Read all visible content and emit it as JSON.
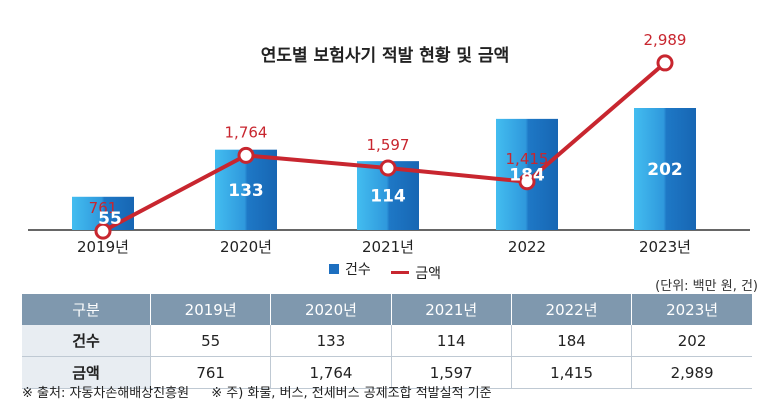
{
  "chart_data": {
    "type": "bar",
    "title": "연도별 보험사기 적발 현황 및 금액",
    "categories": [
      "2019년",
      "2020년",
      "2021년",
      "2022",
      "2023년"
    ],
    "series": [
      {
        "name": "건수",
        "kind": "bar",
        "values": [
          55,
          133,
          114,
          184,
          202
        ]
      },
      {
        "name": "금액",
        "kind": "line",
        "values": [
          761,
          1764,
          1597,
          1415,
          2989
        ]
      }
    ],
    "bar_labels": [
      "55",
      "133",
      "114",
      "184",
      "202"
    ],
    "line_labels": [
      "761",
      "1,764",
      "1,597",
      "1,415",
      "2,989"
    ],
    "colors": {
      "bar": "#1d6fc0",
      "bar_light": "#3fb2e6",
      "line": "#c8262f"
    },
    "legend_position": "bottom",
    "grid": false
  },
  "unit_note": "(단위: 백만 원, 건)",
  "table": {
    "headers": [
      "구분",
      "2019년",
      "2020년",
      "2021년",
      "2022년",
      "2023년"
    ],
    "rows": [
      [
        "건수",
        "55",
        "133",
        "114",
        "184",
        "202"
      ],
      [
        "금액",
        "761",
        "1,764",
        "1,597",
        "1,415",
        "2,989"
      ]
    ]
  },
  "footnotes": [
    "※ 출처: 자동차손해배상진흥원",
    "※ 주) 화물, 버스, 전세버스 공제조합 적발실적 기준"
  ]
}
